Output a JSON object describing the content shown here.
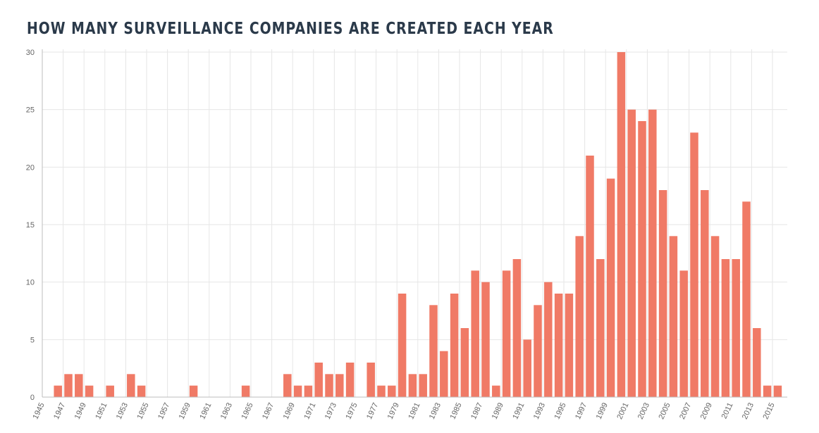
{
  "colors": {
    "title": "#2b3a4a",
    "bar": "#f07a66",
    "grid": "#e6e6e6",
    "axis": "#bdbdbd",
    "tick_text": "#666666"
  },
  "chart_data": {
    "type": "bar",
    "title": "HOW MANY SURVEILLANCE COMPANIES ARE CREATED EACH YEAR",
    "xlabel": "",
    "ylabel": "",
    "ylim": [
      0,
      30
    ],
    "y_ticks": [
      0,
      5,
      10,
      15,
      20,
      25,
      30
    ],
    "grid": true,
    "legend": "none",
    "categories": [
      "1945",
      "1946",
      "1947",
      "1948",
      "1949",
      "1950",
      "1951",
      "1952",
      "1953",
      "1954",
      "1955",
      "1956",
      "1957",
      "1958",
      "1959",
      "1960",
      "1961",
      "1962",
      "1963",
      "1964",
      "1965",
      "1966",
      "1967",
      "1968",
      "1969",
      "1970",
      "1971",
      "1972",
      "1973",
      "1974",
      "1975",
      "1976",
      "1977",
      "1978",
      "1979",
      "1980",
      "1981",
      "1982",
      "1983",
      "1984",
      "1985",
      "1986",
      "1987",
      "1988",
      "1989",
      "1990",
      "1991",
      "1992",
      "1993",
      "1994",
      "1995",
      "1996",
      "1997",
      "1998",
      "1999",
      "2000",
      "2001",
      "2002",
      "2003",
      "2004",
      "2005",
      "2006",
      "2007",
      "2008",
      "2009",
      "2010",
      "2011",
      "2012",
      "2013",
      "2014",
      "2015"
    ],
    "x_tick_labels": [
      "1945",
      "1947",
      "1949",
      "1951",
      "1953",
      "1955",
      "1957",
      "1959",
      "1961",
      "1963",
      "1965",
      "1967",
      "1969",
      "1971",
      "1973",
      "1975",
      "1977",
      "1979",
      "1981",
      "1983",
      "1985",
      "1987",
      "1989",
      "1991",
      "1993",
      "1995",
      "1997",
      "1999",
      "2001",
      "2003",
      "2005",
      "2007",
      "2009",
      "2011",
      "2013",
      "2015"
    ],
    "values": [
      0,
      1,
      2,
      2,
      1,
      0,
      1,
      0,
      2,
      1,
      0,
      0,
      0,
      0,
      1,
      0,
      0,
      0,
      0,
      1,
      0,
      0,
      0,
      2,
      1,
      1,
      3,
      2,
      2,
      3,
      0,
      3,
      1,
      1,
      9,
      2,
      2,
      8,
      4,
      9,
      6,
      11,
      10,
      1,
      11,
      12,
      5,
      8,
      10,
      9,
      9,
      14,
      21,
      12,
      19,
      30,
      25,
      24,
      25,
      18,
      14,
      11,
      23,
      18,
      14,
      12,
      12,
      17,
      6,
      1,
      1
    ]
  }
}
